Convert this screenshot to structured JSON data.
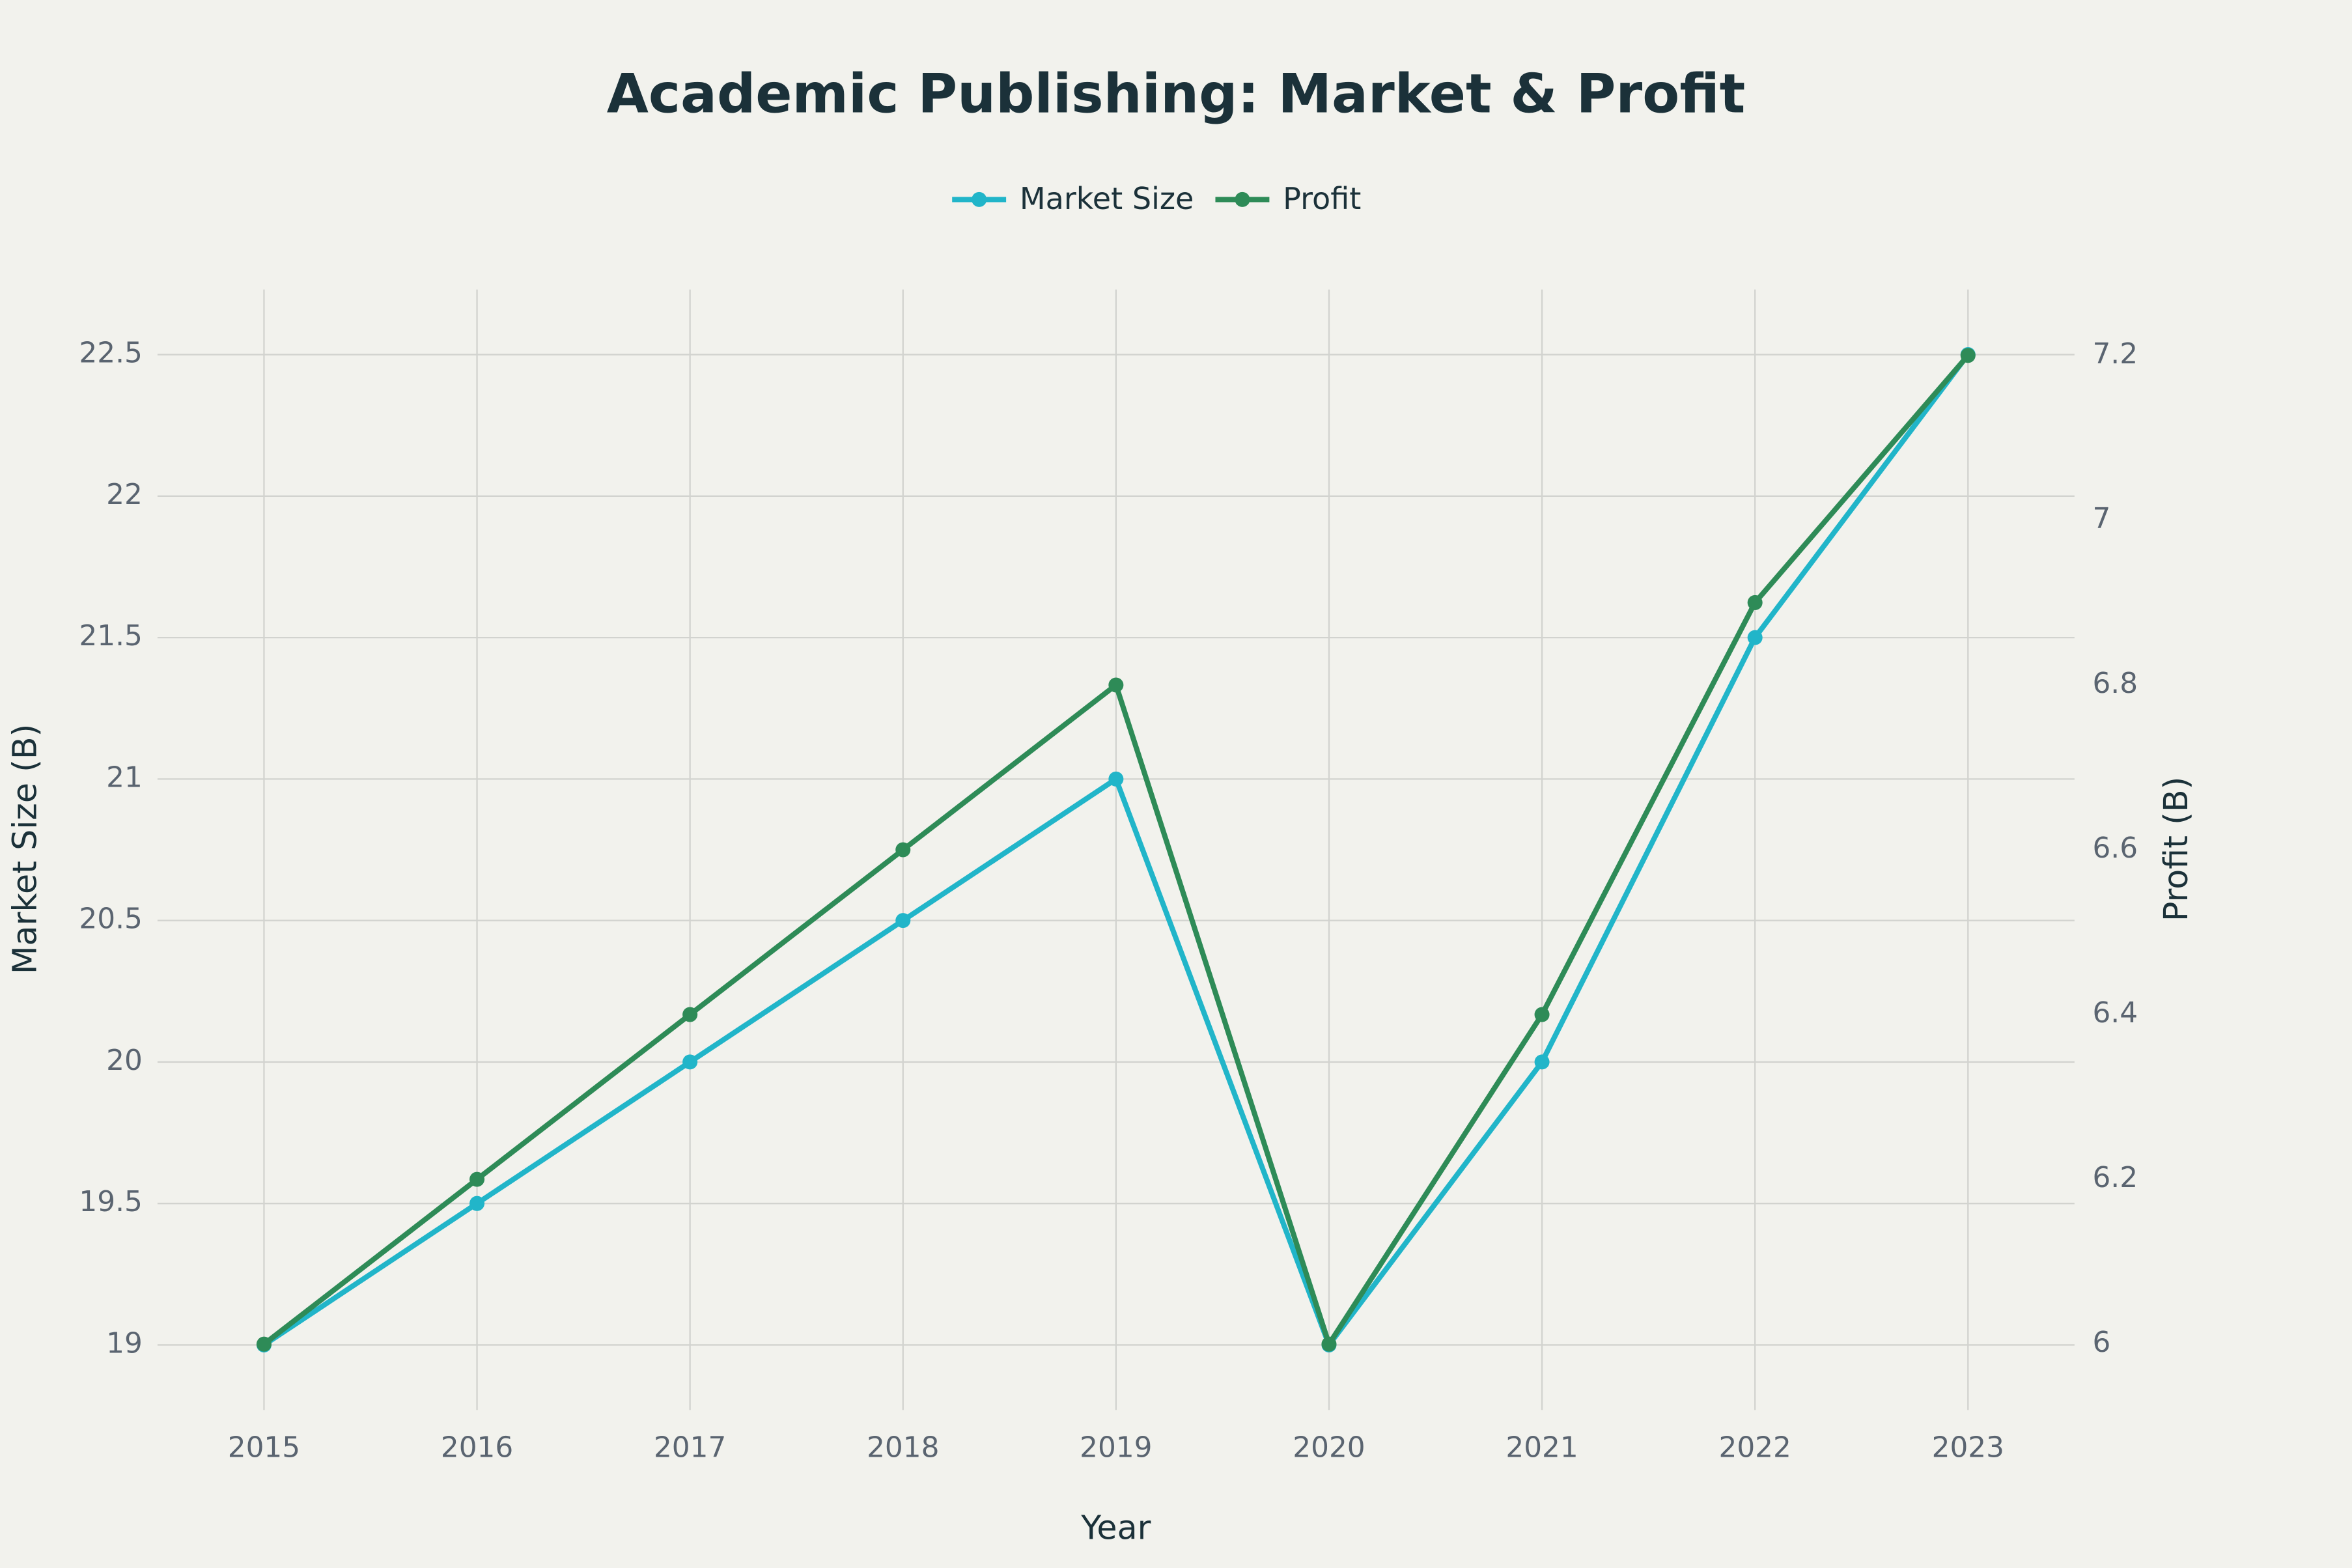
{
  "chart_data": {
    "type": "line",
    "title": "Academic Publishing: Market & Profit",
    "x_label": "Year",
    "y_label": "Market Size (B)",
    "y2_label": "Profit (B)",
    "x": [
      2015,
      2016,
      2017,
      2018,
      2019,
      2020,
      2021,
      2022,
      2023
    ],
    "series": [
      {
        "name": "Market Size",
        "color": "#21b5c9",
        "values": [
          19,
          19.5,
          20,
          20.5,
          21,
          19,
          20,
          21.5,
          22.5
        ]
      },
      {
        "name": "Profit",
        "color": "#2e8b57",
        "axis": "y2",
        "values": [
          6.0,
          6.2,
          6.4,
          6.6,
          6.8,
          6.0,
          6.4,
          6.9,
          7.2
        ]
      }
    ],
    "xlim": [
      2014.5,
      2023.5
    ],
    "xticks": [
      2015,
      2016,
      2017,
      2018,
      2019,
      2020,
      2021,
      2022,
      2023
    ],
    "ylim": [
      18.77,
      22.73
    ],
    "yticks": [
      19,
      19.5,
      20,
      20.5,
      21,
      21.5,
      22,
      22.5
    ],
    "y2lim": [
      5.92,
      7.28
    ],
    "y2ticks": [
      6,
      6.2,
      6.4,
      6.6,
      6.8,
      7,
      7.2
    ],
    "grid": true,
    "legend": "top"
  }
}
